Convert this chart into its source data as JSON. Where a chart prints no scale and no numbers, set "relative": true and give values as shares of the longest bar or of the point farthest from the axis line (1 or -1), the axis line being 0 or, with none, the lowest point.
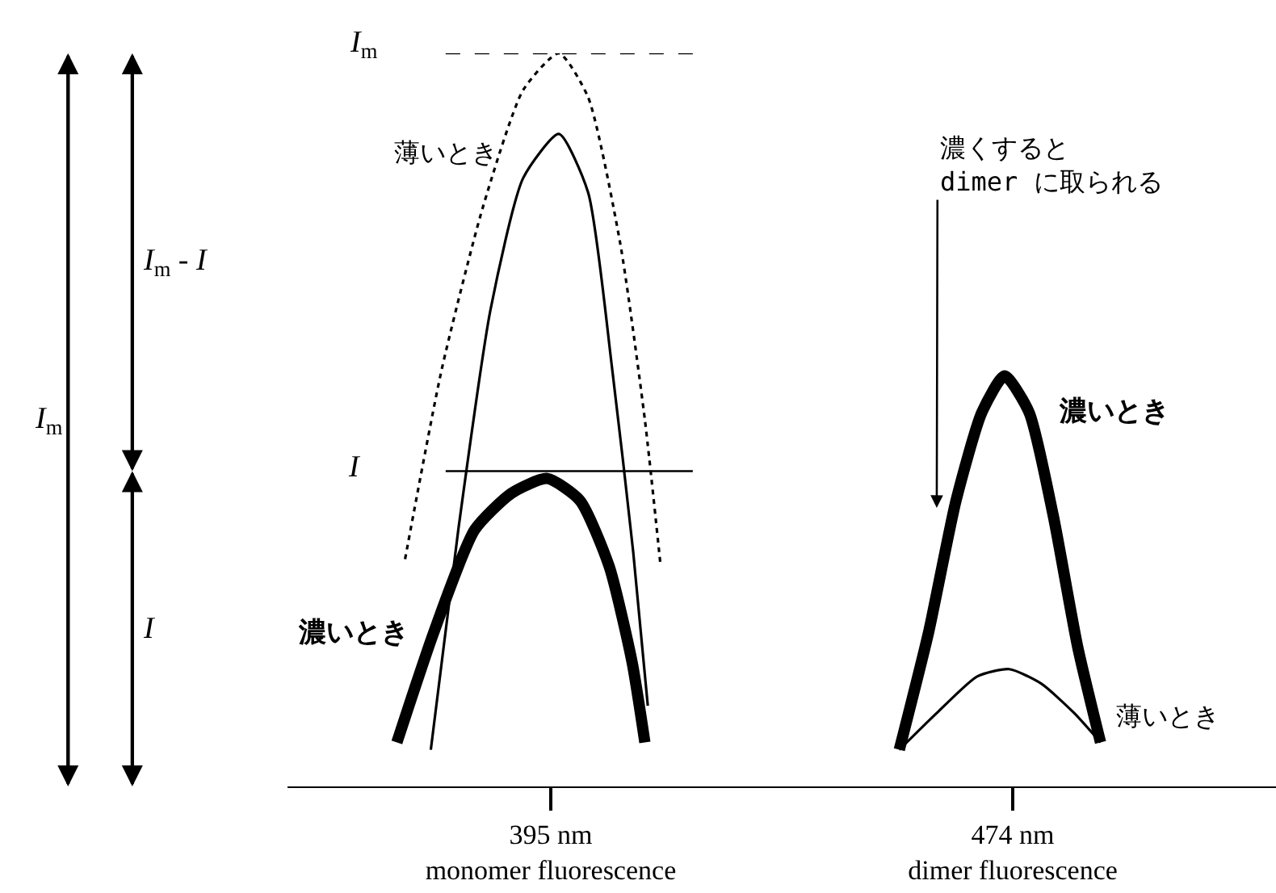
{
  "chart_data": {
    "type": "line",
    "relative": true,
    "legend": false,
    "marker": "none",
    "xlim": [
      350,
      519
    ],
    "xticks": [
      {
        "value": 395,
        "label": "395 nm\nmonomer fluorescence"
      },
      {
        "value": 474,
        "label": "474 nm\ndimer fluorescence"
      }
    ],
    "tick_labels": "x",
    "series": [
      {
        "color": "#000000",
        "line_style": "dotted",
        "x": [
          370.1,
          376.4,
          383.4,
          390.3,
          396.4,
          401.4,
          406.9,
          411.1,
          413.8
        ],
        "values": [
          0.31,
          0.57,
          0.79,
          0.95,
          1.0,
          0.94,
          0.74,
          0.5,
          0.3
        ]
      },
      {
        "name": "薄いとき",
        "color": "#000000",
        "line_style": "solid",
        "x": [
          374.5,
          379.2,
          384.7,
          390.3,
          396.4,
          401.4,
          405.5,
          409.1,
          411.6
        ],
        "values": [
          0.05,
          0.35,
          0.65,
          0.83,
          0.89,
          0.81,
          0.57,
          0.32,
          0.11
        ]
      },
      {
        "name": "濃いとき",
        "color": "#000000",
        "line_style": "solid",
        "x": [
          368.7,
          375.0,
          382.0,
          388.3,
          394.4,
          400.0,
          405.0,
          408.9,
          411.1
        ],
        "values": [
          0.06,
          0.21,
          0.35,
          0.4,
          0.42,
          0.39,
          0.3,
          0.17,
          0.06
        ]
      },
      {
        "name": "濃いとき",
        "color": "#000000",
        "line_style": "solid",
        "x": [
          454.6,
          459.6,
          464.3,
          468.7,
          472.6,
          476.8,
          480.9,
          485.1,
          489.0
        ],
        "values": [
          0.05,
          0.21,
          0.39,
          0.51,
          0.56,
          0.51,
          0.37,
          0.19,
          0.06
        ]
      },
      {
        "name": "薄いとき",
        "color": "#000000",
        "line_style": "solid",
        "x": [
          454.6,
          461.0,
          467.9,
          473.4,
          478.9,
          484.5,
          489.0
        ],
        "values": [
          0.05,
          0.1,
          0.15,
          0.16,
          0.14,
          0.1,
          0.06
        ]
      }
    ],
    "ref_lines": [
      {
        "axis": "y",
        "value": 1.0,
        "label": "I$_{m}$",
        "line_style": "dashed"
      },
      {
        "axis": "y",
        "value": 0.43,
        "label": "I",
        "line_style": "solid"
      }
    ],
    "annotations": [
      "I$_{m}$",
      "I$_{m}$ - I",
      "I",
      "濃くすると\ndimer に取られる"
    ]
  }
}
